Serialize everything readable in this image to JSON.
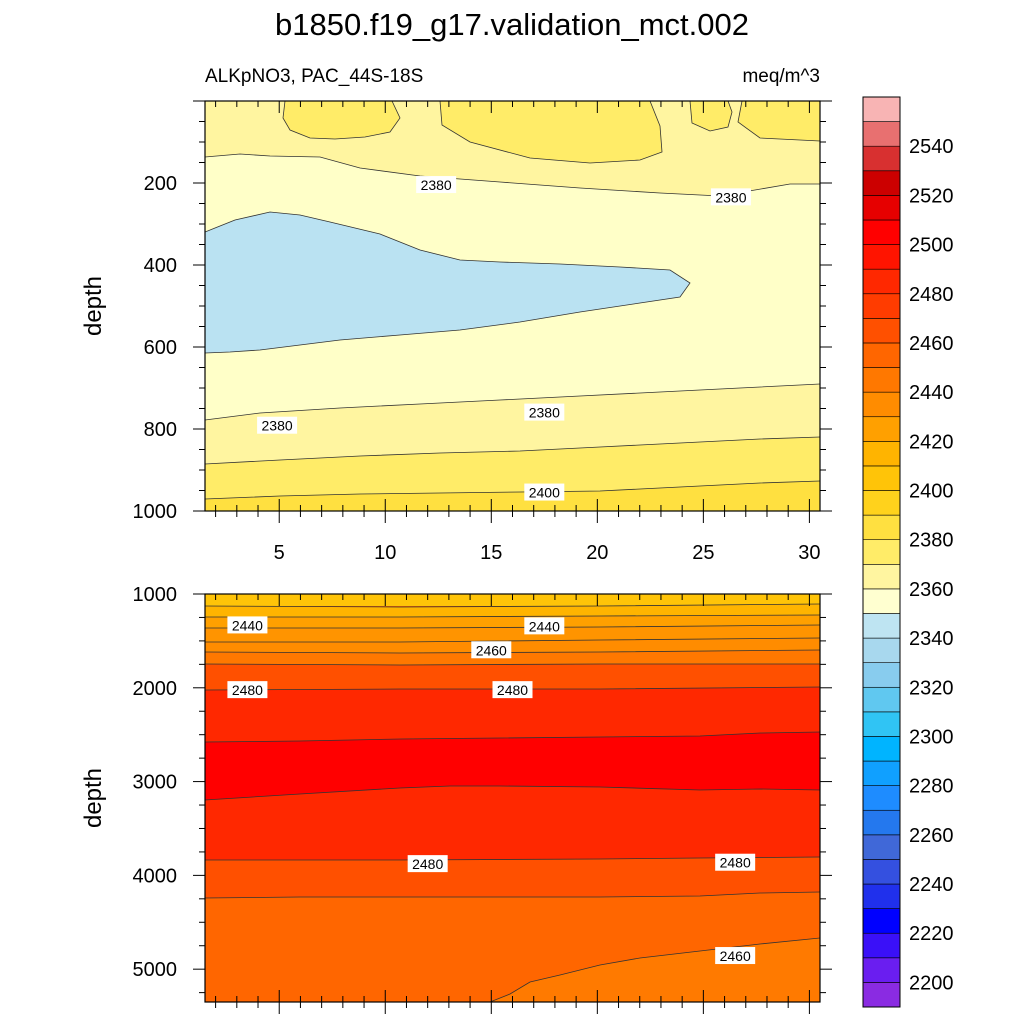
{
  "title": "b1850.f19_g17.validation_mct.002",
  "subtitle_left": "ALKpNO3, PAC_44S-18S",
  "subtitle_right": "meq/m^3",
  "chart_data": [
    {
      "type": "contour",
      "name": "upper panel",
      "xlim": [
        1.5,
        30.5
      ],
      "ylim": [
        1000,
        0
      ],
      "xlabel": "",
      "ylabel": "depth",
      "x_ticks": [
        5,
        10,
        15,
        20,
        25,
        30
      ],
      "y_ticks": [
        200,
        400,
        600,
        800,
        1000
      ],
      "contour_labels": [
        {
          "text": "2380",
          "x": 12.4,
          "y": 205
        },
        {
          "text": "2380",
          "x": 26.3,
          "y": 235
        },
        {
          "text": "2380",
          "x": 4.9,
          "y": 792
        },
        {
          "text": "2380",
          "x": 17.5,
          "y": 760
        },
        {
          "text": "2400",
          "x": 17.5,
          "y": 955
        }
      ]
    },
    {
      "type": "contour",
      "name": "lower panel",
      "xlim": [
        1.5,
        30.5
      ],
      "ylim": [
        5350,
        1000
      ],
      "xlabel": "",
      "ylabel": "depth",
      "y_ticks": [
        1000,
        2000,
        3000,
        4000,
        5000
      ],
      "contour_labels": [
        {
          "text": "2440",
          "x": 3.5,
          "y": 1335
        },
        {
          "text": "2440",
          "x": 17.5,
          "y": 1345
        },
        {
          "text": "2460",
          "x": 15.0,
          "y": 1600
        },
        {
          "text": "2480",
          "x": 3.5,
          "y": 2025
        },
        {
          "text": "2480",
          "x": 16.0,
          "y": 2025
        },
        {
          "text": "2480",
          "x": 12.0,
          "y": 3880
        },
        {
          "text": "2480",
          "x": 26.5,
          "y": 3865
        },
        {
          "text": "2460",
          "x": 26.5,
          "y": 4860
        }
      ]
    }
  ],
  "colorbar": {
    "labels": [
      "2200",
      "2220",
      "2240",
      "2260",
      "2280",
      "2300",
      "2320",
      "2340",
      "2360",
      "2380",
      "2400",
      "2420",
      "2440",
      "2460",
      "2480",
      "2500",
      "2520",
      "2540"
    ],
    "colors": [
      "#8a2be2",
      "#6a1ef0",
      "#3a10f8",
      "#0000ff",
      "#2030ec",
      "#3450e0",
      "#4068d8",
      "#2478ee",
      "#1e8cff",
      "#10a0ff",
      "#00b4ff",
      "#30c4f4",
      "#60c8f0",
      "#88ccee",
      "#a8d8ee",
      "#bee4f2",
      "#ffffd0",
      "#fff5a0",
      "#ffec68",
      "#ffe040",
      "#ffd21c",
      "#ffc408",
      "#ffb400",
      "#ffa000",
      "#ff8c00",
      "#ff7800",
      "#ff6600",
      "#ff5000",
      "#ff3c00",
      "#ff2800",
      "#ff1400",
      "#ff0000",
      "#e60000",
      "#cc0000",
      "#d83030",
      "#e87070",
      "#f8b4b4"
    ]
  }
}
